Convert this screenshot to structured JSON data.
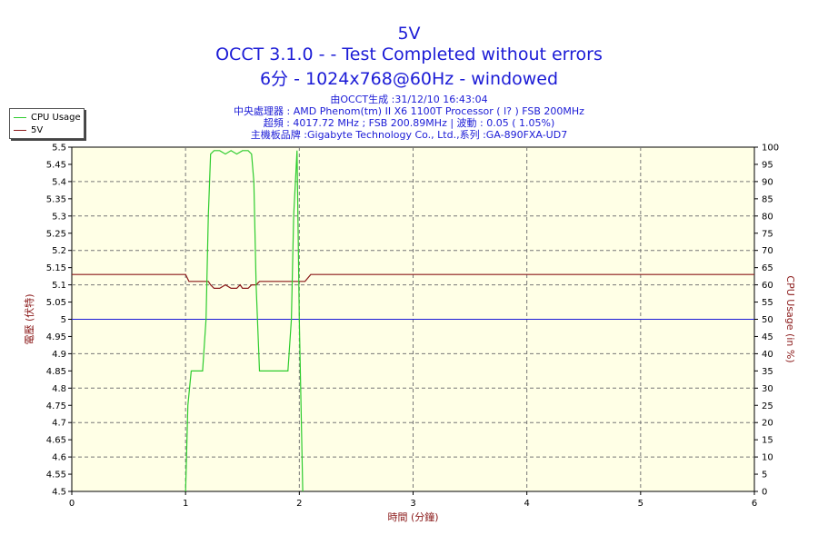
{
  "header": {
    "title": "5V",
    "line2": "OCCT 3.1.0 -  - Test Completed without errors",
    "line3": "6分 - 1024x768@60Hz - windowed",
    "info1": "由OCCT生成 :31/12/10 16:43:04",
    "info2": "中央處理器 : AMD Phenom(tm) II X6 1100T Processor (   l? ) FSB 200MHz",
    "info3": "超頻 : 4017.72 MHz ; FSB 200.89MHz | 波動 : 0.05 ( 1.05%)",
    "info4": "主機板品牌 :Gigabyte Technology Co., Ltd.,系列 :GA-890FXA-UD7"
  },
  "legend": {
    "items": [
      {
        "label": "CPU Usage",
        "color": "#2ecc2e"
      },
      {
        "label": "5V",
        "color": "#8b1a1a"
      }
    ]
  },
  "colors": {
    "title": "#1b1bd6",
    "left_axis_label": "#8b1a1a",
    "right_axis_label": "#8b1a1a",
    "reference_line": "#1b1bd6",
    "plot_background": "#ffffe6"
  },
  "chart_data": {
    "type": "line",
    "xlabel": "時間 (分鐘)",
    "ylabel": "電壓 (伏特)",
    "y2label": "CPU Usage (in %)",
    "xlim": [
      0,
      6
    ],
    "ylim": [
      4.5,
      5.5
    ],
    "y2lim": [
      0,
      100
    ],
    "x_ticks": [
      "0",
      "1",
      "2",
      "3",
      "4",
      "5",
      "6"
    ],
    "y_ticks": [
      "4.5",
      "4.55",
      "4.6",
      "4.65",
      "4.7",
      "4.75",
      "4.8",
      "4.85",
      "4.9",
      "4.95",
      "5",
      "5.05",
      "5.1",
      "5.15",
      "5.2",
      "5.25",
      "5.3",
      "5.35",
      "5.4",
      "5.45",
      "5.5"
    ],
    "y2_ticks": [
      "0",
      "5",
      "10",
      "15",
      "20",
      "25",
      "30",
      "35",
      "40",
      "45",
      "50",
      "55",
      "60",
      "65",
      "70",
      "75",
      "80",
      "85",
      "90",
      "95",
      "100"
    ],
    "grid": true,
    "reference_line_y": 5.0,
    "series": [
      {
        "name": "5V",
        "axis": "left",
        "x": [
          0,
          1.0,
          1.03,
          1.2,
          1.22,
          1.25,
          1.3,
          1.35,
          1.4,
          1.45,
          1.48,
          1.5,
          1.55,
          1.58,
          1.62,
          1.65,
          2.0,
          2.05,
          2.1,
          6.0
        ],
        "y": [
          5.13,
          5.13,
          5.11,
          5.11,
          5.1,
          5.09,
          5.09,
          5.1,
          5.09,
          5.09,
          5.1,
          5.09,
          5.09,
          5.1,
          5.1,
          5.11,
          5.11,
          5.11,
          5.13,
          5.13
        ]
      },
      {
        "name": "CPU Usage",
        "axis": "right",
        "x": [
          1.0,
          1.02,
          1.05,
          1.1,
          1.15,
          1.18,
          1.2,
          1.22,
          1.25,
          1.3,
          1.35,
          1.4,
          1.45,
          1.5,
          1.55,
          1.58,
          1.6,
          1.62,
          1.65,
          1.7,
          1.8,
          1.9,
          1.93,
          1.95,
          1.98,
          2.0,
          2.03
        ],
        "y": [
          0,
          25,
          35,
          35,
          35,
          50,
          80,
          98,
          99,
          99,
          98,
          99,
          98,
          99,
          99,
          98,
          90,
          60,
          35,
          35,
          35,
          35,
          50,
          80,
          99,
          50,
          0
        ]
      }
    ]
  }
}
